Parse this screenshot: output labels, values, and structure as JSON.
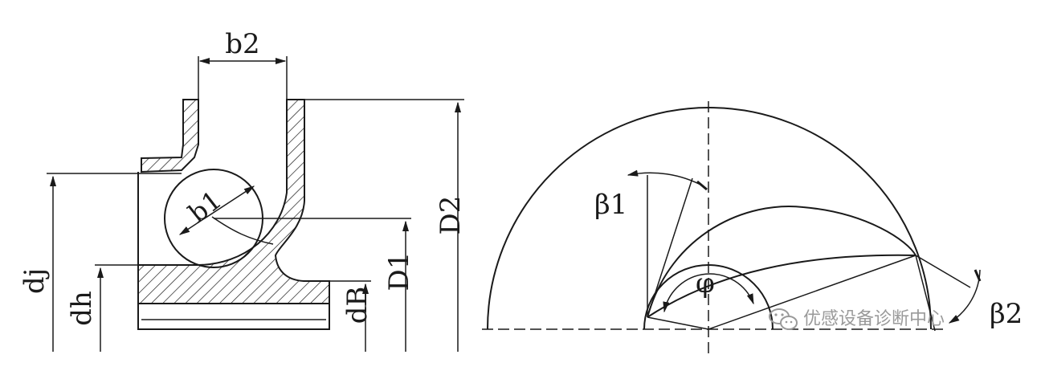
{
  "labels": {
    "b2": "b2",
    "b1": "b1",
    "D2": "D2",
    "D1": "D1",
    "dj": "dj",
    "dh": "dh",
    "dB": "dB",
    "beta1": "β1",
    "beta2": "β2",
    "phi": "φ"
  },
  "watermark": {
    "text": "优感设备诊断中心",
    "icon": "wechat-icon"
  }
}
